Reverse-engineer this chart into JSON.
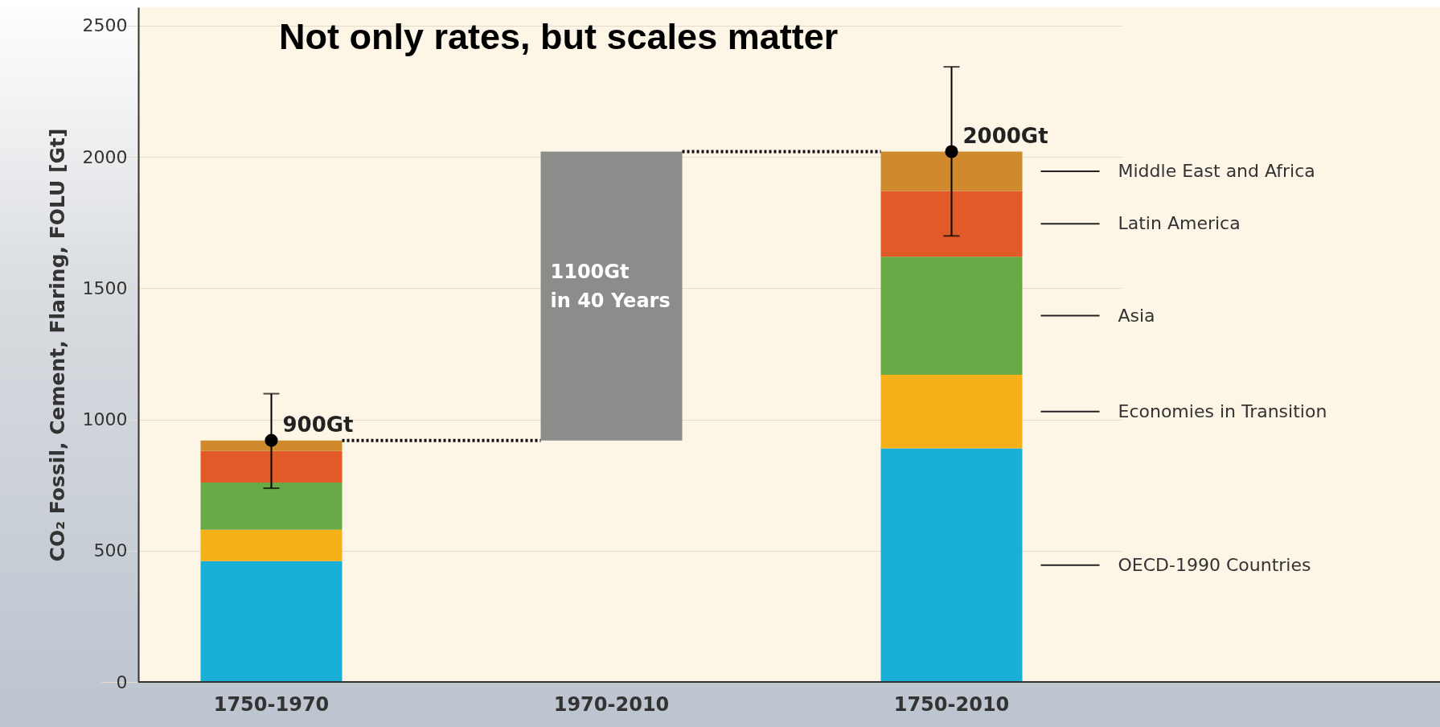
{
  "chart_data": {
    "type": "bar",
    "title": "Not only rates, but scales matter",
    "ylabel": "CO₂ Fossil, Cement, Flaring, FOLU [Gt]",
    "categories": [
      "1750-1970",
      "1970-2010",
      "1750-2010"
    ],
    "stacked": true,
    "grid": "y",
    "marker": "circle",
    "ylim": [
      0,
      2570
    ],
    "yticks": [
      0,
      500,
      1000,
      1500,
      2000,
      2500
    ],
    "series": [
      {
        "name": "OECD-1990 Countries",
        "color": "#1aafd6",
        "values": [
          460,
          null,
          890
        ]
      },
      {
        "name": "Economies in Transition",
        "color": "#f5b01a",
        "values": [
          120,
          null,
          280
        ]
      },
      {
        "name": "Asia",
        "color": "#6aaa46",
        "values": [
          180,
          null,
          450
        ]
      },
      {
        "name": "Latin America",
        "color": "#e25a27",
        "values": [
          120,
          null,
          250
        ]
      },
      {
        "name": "Middle East and Africa",
        "color": "#cf8a2e",
        "values": [
          40,
          null,
          150
        ]
      },
      {
        "color": "#8c8c8a",
        "values": [
          null,
          1100,
          null
        ],
        "base": [
          null,
          920,
          null
        ]
      },
      {
        "type": "scatter",
        "color": "#000000",
        "values": [
          920,
          null,
          2020
        ],
        "errors": [
          [
            738,
            1098
          ],
          null,
          [
            1699,
            2343
          ]
        ]
      }
    ],
    "annotations": [
      {
        "text": "900Gt",
        "x": "1750-1970",
        "y": 920
      },
      {
        "text": "2000Gt",
        "x": "1750-2010",
        "y": 2020
      },
      "1100Gt\nin 40 Years"
    ],
    "ref_lines": [
      {
        "axis": "y",
        "value": 920,
        "color": "#111111",
        "line_style": "dotted"
      },
      {
        "axis": "y",
        "value": 2020,
        "color": "#111111",
        "line_style": "dotted"
      }
    ]
  }
}
